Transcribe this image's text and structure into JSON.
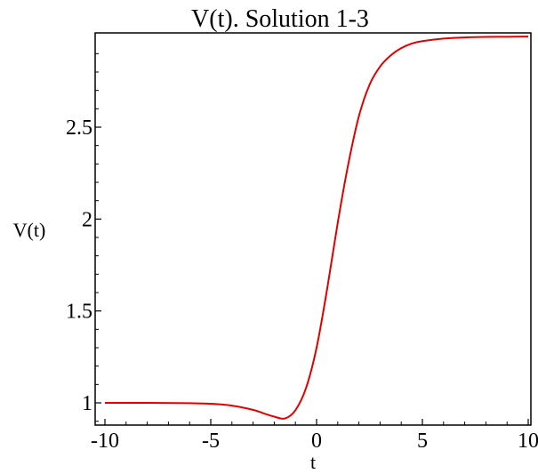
{
  "chart_data": {
    "type": "line",
    "title": "V(t). Solution 1-3",
    "xlabel": "t",
    "ylabel": "V(t)",
    "xlim": [
      -10,
      10
    ],
    "ylim": [
      0.9,
      2.99
    ],
    "x_ticks": [
      -10,
      -5,
      0,
      5,
      10
    ],
    "x_tick_labels": [
      "-10",
      "-5",
      "0",
      "5",
      "10"
    ],
    "y_ticks": [
      1,
      1.5,
      2,
      2.5
    ],
    "y_tick_labels": [
      "1",
      "1.5",
      "2",
      "2.5"
    ],
    "grid": false,
    "legend": "none",
    "series": [
      {
        "color": "#e00000",
        "x": [
          -10,
          -8,
          -6,
          -5,
          -4,
          -3,
          -2.5,
          -2,
          -1.5,
          -1,
          -0.5,
          0,
          0.5,
          1,
          1.5,
          2,
          2.5,
          3,
          3.5,
          4,
          4.5,
          5,
          6,
          7,
          8,
          9,
          10
        ],
        "y": [
          1.0,
          1.0,
          0.998,
          0.995,
          0.985,
          0.962,
          0.943,
          0.925,
          0.915,
          0.96,
          1.08,
          1.3,
          1.62,
          1.98,
          2.3,
          2.56,
          2.73,
          2.83,
          2.89,
          2.93,
          2.955,
          2.968,
          2.982,
          2.988,
          2.991,
          2.992,
          2.993
        ]
      }
    ]
  }
}
